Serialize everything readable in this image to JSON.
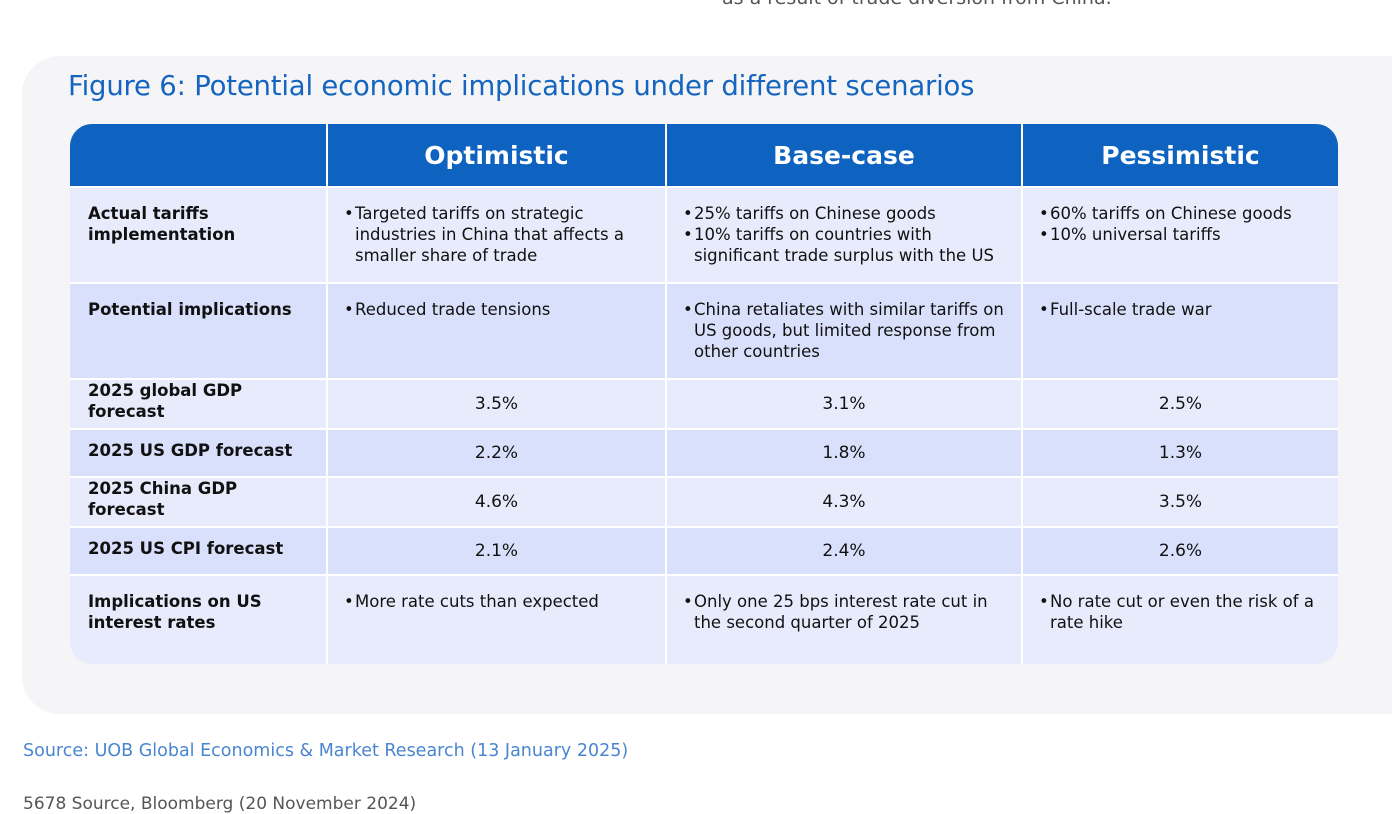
{
  "top_text": "as a result of trade diversion from China.",
  "figure_title": "Figure 6: Potential economic implications under different scenarios",
  "table": {
    "headers": [
      "",
      "Optimistic",
      "Base-case",
      "Pessimistic"
    ],
    "rows": [
      {
        "label": "Actual tariffs implementation",
        "optimistic": [
          "Targeted tariffs on strategic industries in China that affects a smaller share of trade"
        ],
        "base": [
          "25% tariffs on Chinese goods",
          "10% tariffs on countries with significant trade surplus with the US"
        ],
        "pessimistic": [
          "60% tariffs on Chinese goods",
          "10% universal tariffs"
        ]
      },
      {
        "label": "Potential implications",
        "optimistic": [
          "Reduced trade tensions"
        ],
        "base": [
          "China retaliates with similar tariffs on US goods, but limited response from other countries"
        ],
        "pessimistic": [
          "Full-scale trade war"
        ]
      },
      {
        "label": "2025 global GDP forecast",
        "optimistic": "3.5%",
        "base": "3.1%",
        "pessimistic": "2.5%"
      },
      {
        "label": "2025 US GDP forecast",
        "optimistic": "2.2%",
        "base": "1.8%",
        "pessimistic": "1.3%"
      },
      {
        "label": "2025 China GDP forecast",
        "optimistic": "4.6%",
        "base": "4.3%",
        "pessimistic": "3.5%"
      },
      {
        "label": "2025 US CPI forecast",
        "optimistic": "2.1%",
        "base": "2.4%",
        "pessimistic": "2.6%"
      },
      {
        "label": "Implications on US interest rates",
        "optimistic": [
          "More rate cuts than expected"
        ],
        "base": [
          "Only one 25 bps interest rate cut in the second quarter of 2025"
        ],
        "pessimistic": [
          "No rate cut or even the risk of a rate hike"
        ]
      }
    ]
  },
  "source": "Source: UOB Global Economics & Market Research (13 January 2025)",
  "footnote": "5678 Source, Bloomberg (20 November 2024)"
}
